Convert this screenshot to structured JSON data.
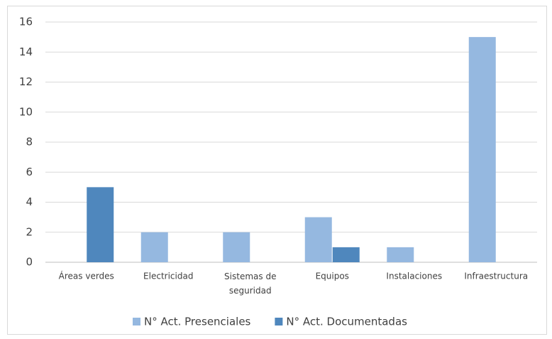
{
  "chart_data": {
    "type": "bar",
    "categories": [
      "Áreas verdes",
      "Electricidad",
      "Sistemas de seguridad",
      "Equipos",
      "Instalaciones",
      "Infraestructura"
    ],
    "series": [
      {
        "name": "N° Act. Presenciales",
        "color": "#95b8e0",
        "values": [
          0,
          2,
          2,
          3,
          1,
          15
        ]
      },
      {
        "name": "N° Act. Documentadas",
        "color": "#4f87bd",
        "values": [
          5,
          0,
          0,
          1,
          0,
          0
        ]
      }
    ],
    "ylim": [
      0,
      16
    ],
    "yticks": [
      0,
      2,
      4,
      6,
      8,
      10,
      12,
      14,
      16
    ],
    "grid": true,
    "legend": "bottom"
  }
}
